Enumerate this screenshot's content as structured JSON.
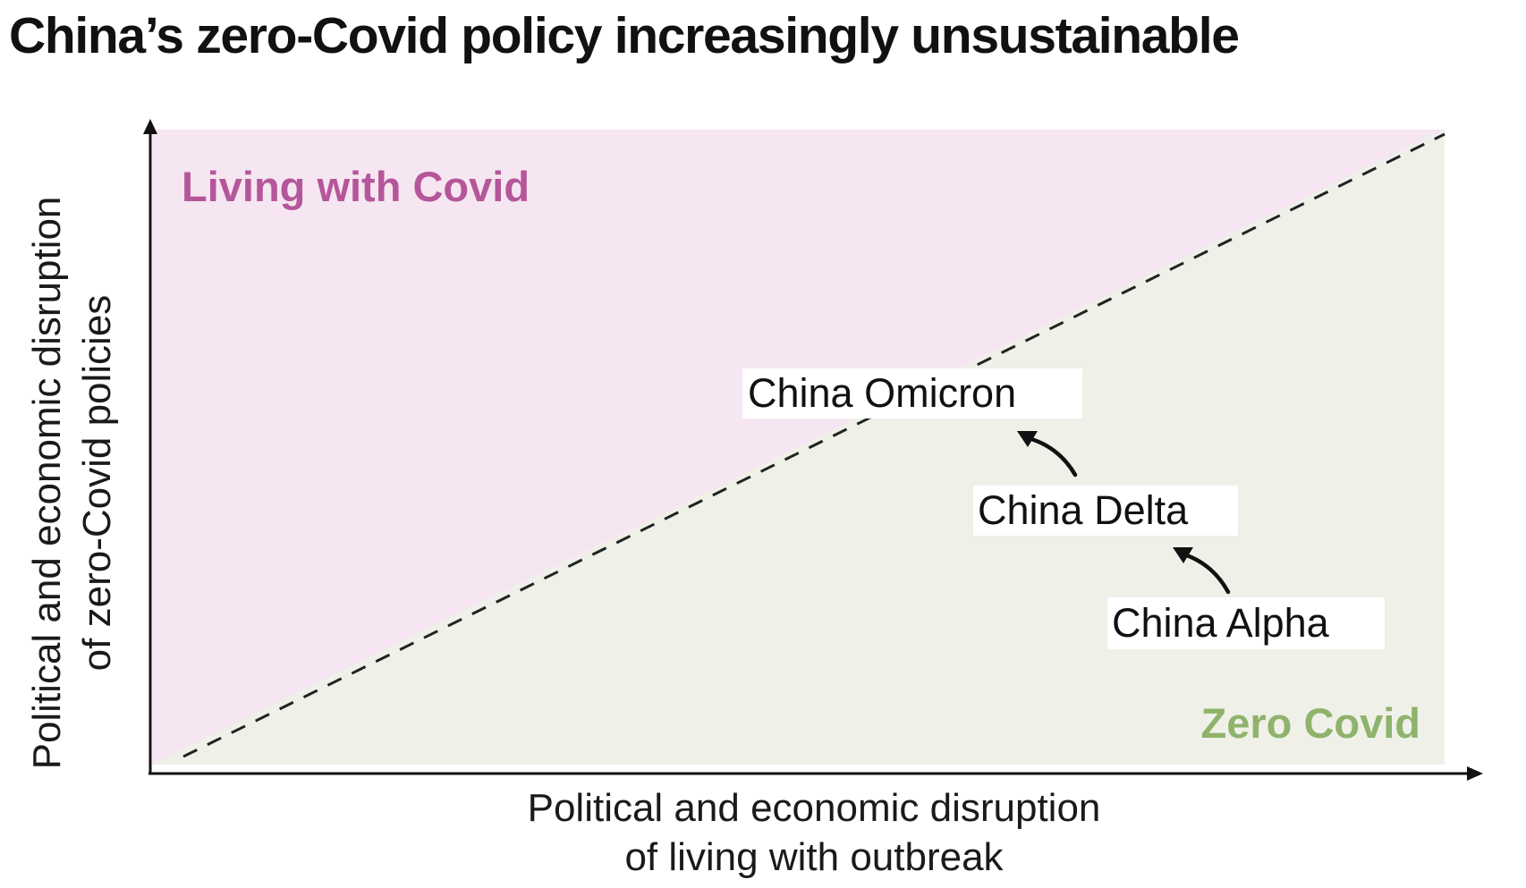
{
  "title": "China’s zero-Covid policy increasingly unsustainable",
  "axes": {
    "y_label_line1": "Political and economic disruption",
    "y_label_line2": "of zero-Covid policies",
    "x_label_line1": "Political and economic disruption",
    "x_label_line2": "of living with outbreak"
  },
  "regions": {
    "upper": {
      "label": "Living with Covid",
      "label_color": "#b5569a",
      "fill": "#f5e6f1"
    },
    "lower": {
      "label": "Zero Covid",
      "label_color": "#8fb36b",
      "fill": "#eff1e9"
    }
  },
  "points": {
    "omicron": "China Omicron",
    "delta": "China Delta",
    "alpha": "China Alpha"
  },
  "colors": {
    "axis": "#111111",
    "text": "#111111",
    "dashed_line": "#222222"
  }
}
